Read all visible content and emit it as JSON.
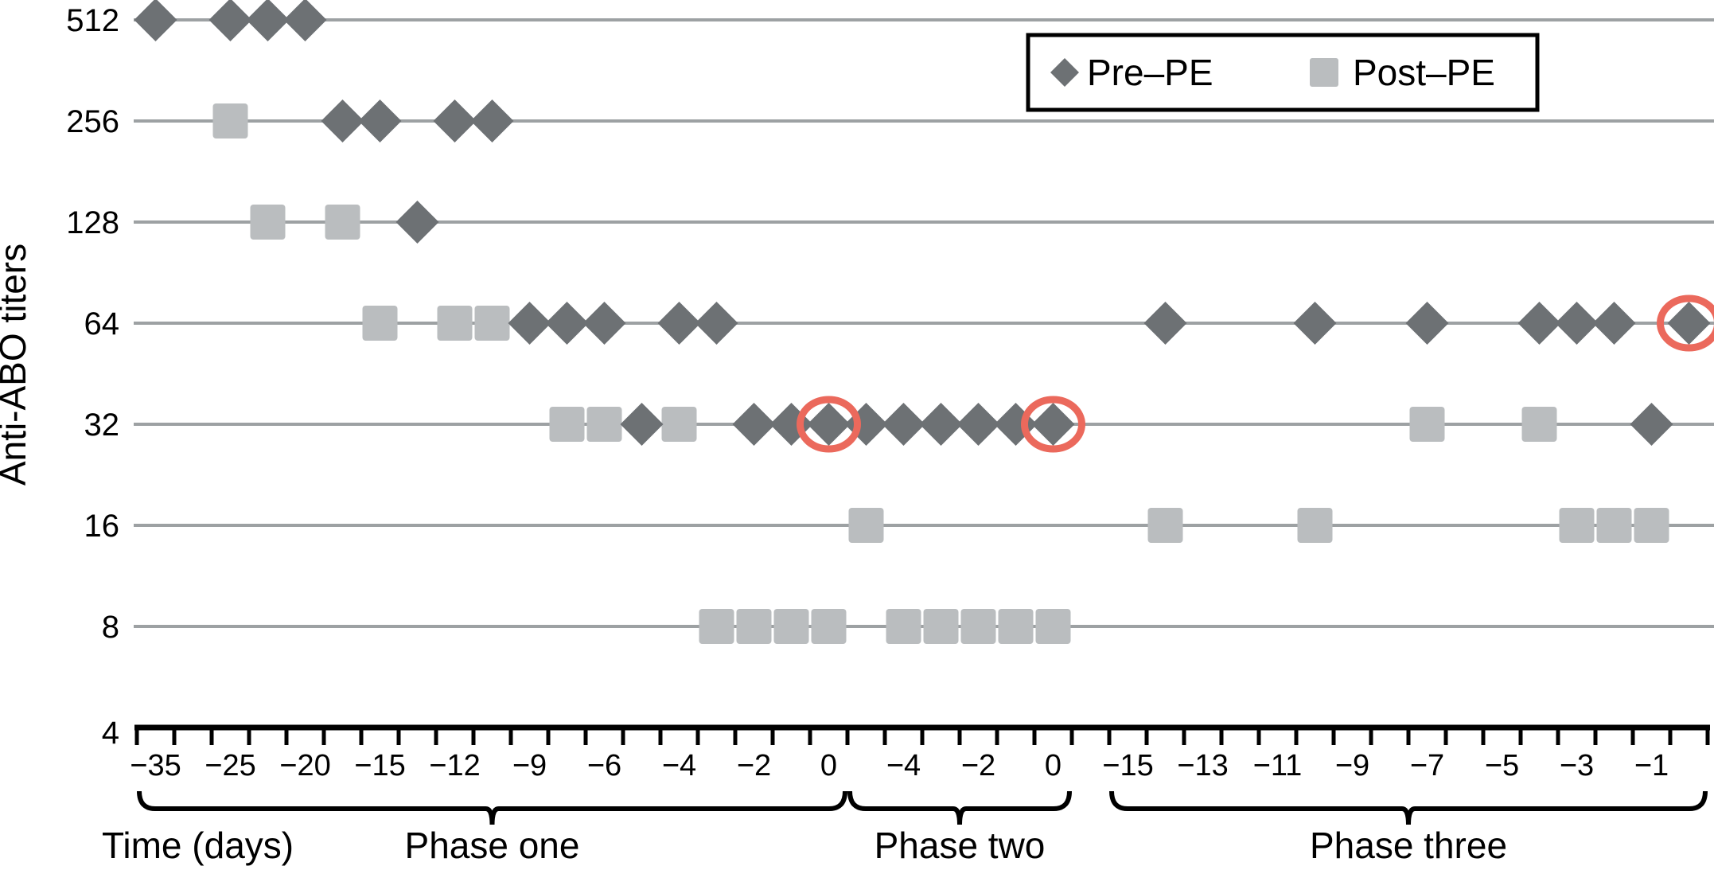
{
  "figure": {
    "ylabel": "Anti-ABO titers",
    "bottom_left_label": "Time (days)",
    "background": "#ffffff"
  },
  "legend": {
    "pre_label": "Pre–PE",
    "post_label": "Post–PE"
  },
  "colors": {
    "pre": "#6d7174",
    "post": "#babdbf",
    "row_line": "#9da1a3",
    "axis": "#000000",
    "highlight_circle": "#eb695c"
  },
  "chart_data": {
    "type": "scatter",
    "title": "",
    "ylabel": "Anti-ABO titers",
    "xlabel": "Time (days)",
    "y_categories": [
      "512",
      "256",
      "128",
      "64",
      "32",
      "16",
      "8",
      "4"
    ],
    "x_axis": {
      "total_slots": 42,
      "slot_labels": {
        "0": "−35",
        "2": "−25",
        "4": "−20",
        "6": "−15",
        "8": "−12",
        "10": "−9",
        "12": "−6",
        "14": "−4",
        "16": "−2",
        "18": "0",
        "20": "−4",
        "22": "−2",
        "24": "0",
        "26": "−15",
        "28": "−13",
        "30": "−11",
        "32": "−9",
        "34": "−7",
        "36": "−5",
        "38": "−3",
        "40": "−1"
      },
      "phases": [
        {
          "name": "Phase one",
          "slot_start": 0,
          "slot_end": 18
        },
        {
          "name": "Phase two",
          "slot_start": 19,
          "slot_end": 24
        },
        {
          "name": "Phase three",
          "slot_start": 26,
          "slot_end": 41
        }
      ]
    },
    "series": [
      {
        "name": "Pre–PE",
        "marker": "diamond",
        "color": "#6d7174",
        "points": [
          {
            "titer": 512,
            "slot": 0,
            "day": -35,
            "phase": "one"
          },
          {
            "titer": 512,
            "slot": 2,
            "day": -25,
            "phase": "one"
          },
          {
            "titer": 512,
            "slot": 3,
            "day": -22.5,
            "phase": "one"
          },
          {
            "titer": 512,
            "slot": 4,
            "day": -20,
            "phase": "one"
          },
          {
            "titer": 256,
            "slot": 5,
            "day": -17.5,
            "phase": "one"
          },
          {
            "titer": 256,
            "slot": 6,
            "day": -15,
            "phase": "one"
          },
          {
            "titer": 256,
            "slot": 8,
            "day": -12,
            "phase": "one"
          },
          {
            "titer": 256,
            "slot": 9,
            "day": -10.5,
            "phase": "one"
          },
          {
            "titer": 128,
            "slot": 7,
            "day": -13.5,
            "phase": "one"
          },
          {
            "titer": 64,
            "slot": 10,
            "day": -9,
            "phase": "one"
          },
          {
            "titer": 64,
            "slot": 11,
            "day": -7.5,
            "phase": "one"
          },
          {
            "titer": 64,
            "slot": 12,
            "day": -6,
            "phase": "one"
          },
          {
            "titer": 64,
            "slot": 14,
            "day": -4,
            "phase": "one"
          },
          {
            "titer": 64,
            "slot": 15,
            "day": -3,
            "phase": "one"
          },
          {
            "titer": 32,
            "slot": 13,
            "day": -5,
            "phase": "one"
          },
          {
            "titer": 32,
            "slot": 16,
            "day": -2,
            "phase": "one"
          },
          {
            "titer": 32,
            "slot": 17,
            "day": -1,
            "phase": "one"
          },
          {
            "titer": 32,
            "slot": 18,
            "day": 0,
            "phase": "one",
            "circled": true
          },
          {
            "titer": 32,
            "slot": 19,
            "day": -5,
            "phase": "two"
          },
          {
            "titer": 32,
            "slot": 20,
            "day": -4,
            "phase": "two"
          },
          {
            "titer": 32,
            "slot": 21,
            "day": -3,
            "phase": "two"
          },
          {
            "titer": 32,
            "slot": 22,
            "day": -2,
            "phase": "two"
          },
          {
            "titer": 32,
            "slot": 23,
            "day": -1,
            "phase": "two"
          },
          {
            "titer": 32,
            "slot": 24,
            "day": 0,
            "phase": "two",
            "circled": true
          },
          {
            "titer": 64,
            "slot": 27,
            "day": -14,
            "phase": "three"
          },
          {
            "titer": 64,
            "slot": 31,
            "day": -10,
            "phase": "three"
          },
          {
            "titer": 64,
            "slot": 34,
            "day": -7,
            "phase": "three"
          },
          {
            "titer": 64,
            "slot": 37,
            "day": -4,
            "phase": "three"
          },
          {
            "titer": 64,
            "slot": 38,
            "day": -3,
            "phase": "three"
          },
          {
            "titer": 64,
            "slot": 39,
            "day": -2,
            "phase": "three"
          },
          {
            "titer": 32,
            "slot": 40,
            "day": -1,
            "phase": "three"
          },
          {
            "titer": 64,
            "slot": 41,
            "day": 0,
            "phase": "three",
            "circled": true
          }
        ]
      },
      {
        "name": "Post–PE",
        "marker": "square",
        "color": "#babdbf",
        "points": [
          {
            "titer": 256,
            "slot": 2,
            "day": -25,
            "phase": "one"
          },
          {
            "titer": 128,
            "slot": 3,
            "day": -22.5,
            "phase": "one"
          },
          {
            "titer": 128,
            "slot": 5,
            "day": -17.5,
            "phase": "one"
          },
          {
            "titer": 64,
            "slot": 6,
            "day": -15,
            "phase": "one"
          },
          {
            "titer": 64,
            "slot": 8,
            "day": -12,
            "phase": "one"
          },
          {
            "titer": 64,
            "slot": 9,
            "day": -10.5,
            "phase": "one"
          },
          {
            "titer": 32,
            "slot": 11,
            "day": -7.5,
            "phase": "one"
          },
          {
            "titer": 32,
            "slot": 12,
            "day": -6,
            "phase": "one"
          },
          {
            "titer": 32,
            "slot": 14,
            "day": -4,
            "phase": "one"
          },
          {
            "titer": 8,
            "slot": 15,
            "day": -3,
            "phase": "one"
          },
          {
            "titer": 8,
            "slot": 16,
            "day": -2,
            "phase": "one"
          },
          {
            "titer": 8,
            "slot": 17,
            "day": -1,
            "phase": "one"
          },
          {
            "titer": 8,
            "slot": 18,
            "day": 0,
            "phase": "one"
          },
          {
            "titer": 16,
            "slot": 19,
            "day": -5,
            "phase": "two"
          },
          {
            "titer": 8,
            "slot": 20,
            "day": -4,
            "phase": "two"
          },
          {
            "titer": 8,
            "slot": 21,
            "day": -3,
            "phase": "two"
          },
          {
            "titer": 8,
            "slot": 22,
            "day": -2,
            "phase": "two"
          },
          {
            "titer": 8,
            "slot": 23,
            "day": -1,
            "phase": "two"
          },
          {
            "titer": 8,
            "slot": 24,
            "day": 0,
            "phase": "two"
          },
          {
            "titer": 16,
            "slot": 27,
            "day": -14,
            "phase": "three"
          },
          {
            "titer": 16,
            "slot": 31,
            "day": -10,
            "phase": "three"
          },
          {
            "titer": 32,
            "slot": 34,
            "day": -7,
            "phase": "three"
          },
          {
            "titer": 32,
            "slot": 37,
            "day": -4,
            "phase": "three"
          },
          {
            "titer": 16,
            "slot": 38,
            "day": -3,
            "phase": "three"
          },
          {
            "titer": 16,
            "slot": 39,
            "day": -2,
            "phase": "three"
          },
          {
            "titer": 16,
            "slot": 40,
            "day": -1,
            "phase": "three"
          }
        ]
      }
    ]
  }
}
